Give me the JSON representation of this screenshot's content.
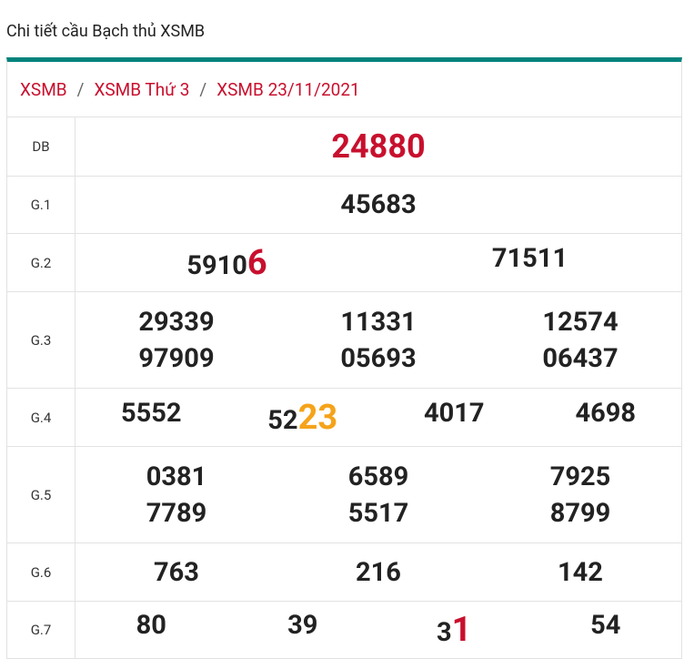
{
  "header": {
    "title": "Chi tiết cầu Bạch thủ XSMB"
  },
  "breadcrumb": {
    "items": [
      "XSMB",
      "XSMB Thứ 3",
      "XSMB 23/11/2021"
    ],
    "separator": "/"
  },
  "table": {
    "rows": [
      {
        "label": "DB",
        "numbers": [
          "24880"
        ],
        "color": "#c8102e"
      },
      {
        "label": "G.1",
        "numbers": [
          "45683"
        ]
      },
      {
        "label": "G.2",
        "numbers": [
          {
            "plain": "5910",
            "hit": "6",
            "color": "#c8102e"
          },
          "71511"
        ]
      },
      {
        "label": "G.3",
        "numbers": [
          "29339",
          "11331",
          "12574",
          "97909",
          "05693",
          "06437"
        ]
      },
      {
        "label": "G.4",
        "numbers": [
          "5552",
          {
            "plain": "52",
            "hit": "23",
            "color": "#f5a31a"
          },
          "4017",
          "4698"
        ]
      },
      {
        "label": "G.5",
        "numbers": [
          "0381",
          "6589",
          "7925",
          "7789",
          "5517",
          "8799"
        ]
      },
      {
        "label": "G.6",
        "numbers": [
          "763",
          "216",
          "142"
        ]
      },
      {
        "label": "G.7",
        "numbers": [
          "80",
          "39",
          {
            "plain": "3",
            "hit": "1",
            "color": "#c8102e"
          },
          "54"
        ]
      }
    ]
  }
}
